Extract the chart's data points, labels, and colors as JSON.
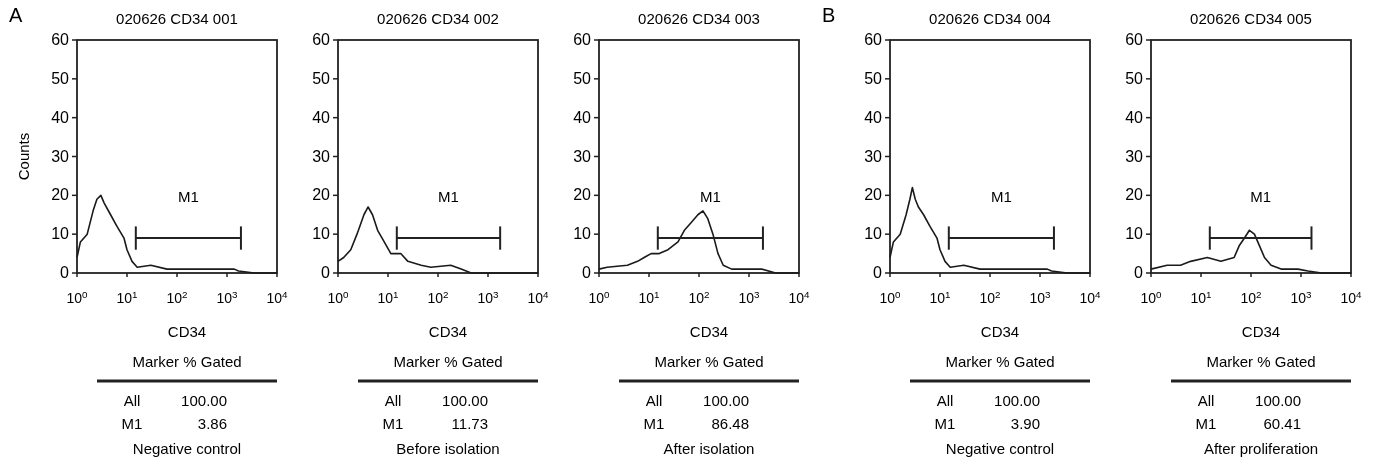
{
  "chart_data": [
    {
      "type": "line",
      "title": "020626 CD34 001",
      "xlabel": "CD34",
      "ylabel": "Counts",
      "log": "x",
      "xlim": [
        1,
        10000
      ],
      "ylim": [
        0,
        60
      ],
      "xticks": [
        {
          "value": 1,
          "label": "10$^{0}$"
        },
        {
          "value": 10,
          "label": "10$^{1}$"
        },
        {
          "value": 100,
          "label": "10$^{2}$"
        },
        {
          "value": 1000,
          "label": "10$^{3}$"
        },
        {
          "value": 10000,
          "label": "10$^{4}$"
        }
      ],
      "yticks": [
        0,
        10,
        20,
        30,
        40,
        50,
        60
      ],
      "series": [
        {
          "color": "#1a1a1a",
          "x": [
            1,
            1.17,
            1.6,
            2.1,
            2.5,
            3,
            3.5,
            4.7,
            6.3,
            8.7,
            10,
            12.6,
            16,
            30,
            63,
            140,
            300,
            650,
            1400,
            1700,
            3500,
            10000
          ],
          "values": [
            4,
            8,
            10,
            16,
            19,
            20,
            18,
            15,
            12,
            9,
            6,
            3,
            1.5,
            2,
            1,
            1,
            1,
            1,
            1,
            0.5,
            0,
            0
          ]
        },
        {
          "name": "M1",
          "color": "#222222",
          "x": [
            15,
            1900
          ],
          "values": [
            9,
            9
          ],
          "errors": [
            3,
            3
          ]
        }
      ],
      "annotations": [
        "A",
        "Marker % Gated",
        "All",
        "100.00",
        "M1",
        "3.86",
        "Negative control"
      ]
    },
    {
      "type": "line",
      "title": "020626 CD34 002",
      "xlabel": "CD34",
      "log": "x",
      "xlim": [
        1,
        10000
      ],
      "ylim": [
        0,
        60
      ],
      "xticks": [
        {
          "value": 1,
          "label": "10$^{0}$"
        },
        {
          "value": 10,
          "label": "10$^{1}$"
        },
        {
          "value": 100,
          "label": "10$^{2}$"
        },
        {
          "value": 1000,
          "label": "10$^{3}$"
        },
        {
          "value": 10000,
          "label": "10$^{4}$"
        }
      ],
      "yticks": [
        0,
        10,
        20,
        30,
        40,
        50,
        60
      ],
      "series": [
        {
          "color": "#1a1a1a",
          "x": [
            1,
            1.3,
            1.8,
            2.4,
            3.3,
            4,
            4.9,
            6.2,
            8.4,
            11.4,
            18,
            25,
            46,
            72,
            180,
            290,
            460,
            10000
          ],
          "values": [
            3,
            4,
            6,
            10,
            15,
            17,
            15,
            11,
            8,
            5,
            5,
            3,
            2,
            1.5,
            2,
            1,
            0,
            0
          ]
        },
        {
          "name": "M1",
          "color": "#222222",
          "x": [
            15,
            1750
          ],
          "values": [
            9,
            9
          ],
          "errors": [
            3,
            3
          ]
        }
      ],
      "annotations": [
        "Marker % Gated",
        "All",
        "100.00",
        "M1",
        "11.73",
        "Before isolation"
      ]
    },
    {
      "type": "line",
      "title": "020626 CD34 003",
      "xlabel": "CD34",
      "log": "x",
      "xlim": [
        1,
        10000
      ],
      "ylim": [
        0,
        60
      ],
      "xticks": [
        {
          "value": 1,
          "label": "10$^{0}$"
        },
        {
          "value": 10,
          "label": "10$^{1}$"
        },
        {
          "value": 100,
          "label": "10$^{2}$"
        },
        {
          "value": 1000,
          "label": "10$^{3}$"
        },
        {
          "value": 10000,
          "label": "10$^{4}$"
        }
      ],
      "yticks": [
        0,
        10,
        20,
        30,
        40,
        50,
        60
      ],
      "series": [
        {
          "color": "#1a1a1a",
          "x": [
            1,
            1.45,
            3.7,
            5.9,
            8,
            11,
            16,
            24,
            38,
            51,
            70,
            95,
            120,
            150,
            190,
            240,
            305,
            450,
            720,
            1800,
            3400,
            10000
          ],
          "values": [
            1,
            1.5,
            2,
            3,
            4,
            5,
            5,
            6,
            8,
            11,
            13,
            15,
            16,
            14,
            10,
            5,
            2,
            1,
            1,
            1,
            0,
            0
          ]
        },
        {
          "name": "M1",
          "color": "#222222",
          "x": [
            15,
            1900
          ],
          "values": [
            9,
            9
          ],
          "errors": [
            3,
            3
          ]
        }
      ],
      "annotations": [
        "Marker % Gated",
        "All",
        "100.00",
        "M1",
        "86.48",
        "After isolation"
      ]
    },
    {
      "type": "line",
      "title": "020626 CD34 004",
      "xlabel": "CD34",
      "log": "x",
      "xlim": [
        1,
        10000
      ],
      "ylim": [
        0,
        60
      ],
      "xticks": [
        {
          "value": 1,
          "label": "10$^{0}$"
        },
        {
          "value": 10,
          "label": "10$^{1}$"
        },
        {
          "value": 100,
          "label": "10$^{2}$"
        },
        {
          "value": 1000,
          "label": "10$^{3}$"
        },
        {
          "value": 10000,
          "label": "10$^{4}$"
        }
      ],
      "yticks": [
        0,
        10,
        20,
        30,
        40,
        50,
        60
      ],
      "series": [
        {
          "color": "#1a1a1a",
          "x": [
            1,
            1.17,
            1.6,
            2.1,
            2.5,
            2.8,
            3.2,
            3.7,
            4.7,
            6.3,
            8.7,
            10,
            12.6,
            16,
            30,
            63,
            140,
            300,
            650,
            1400,
            1700,
            3500,
            10000
          ],
          "values": [
            4,
            8,
            10,
            15,
            19,
            22,
            19,
            17,
            15,
            12,
            9,
            6,
            3,
            1.5,
            2,
            1,
            1,
            1,
            1,
            1,
            0.5,
            0,
            0
          ]
        },
        {
          "name": "M1",
          "color": "#222222",
          "x": [
            15,
            1900
          ],
          "values": [
            9,
            9
          ],
          "errors": [
            3,
            3
          ]
        }
      ],
      "annotations": [
        "B",
        "Marker % Gated",
        "All",
        "100.00",
        "M1",
        "3.90",
        "Negative control"
      ]
    },
    {
      "type": "line",
      "title": "020626 CD34 005",
      "xlabel": "CD34",
      "log": "x",
      "xlim": [
        1,
        10000
      ],
      "ylim": [
        0,
        60
      ],
      "xticks": [
        {
          "value": 1,
          "label": "10$^{0}$"
        },
        {
          "value": 10,
          "label": "10$^{1}$"
        },
        {
          "value": 100,
          "label": "10$^{2}$"
        },
        {
          "value": 1000,
          "label": "10$^{3}$"
        },
        {
          "value": 10000,
          "label": "10$^{4}$"
        }
      ],
      "yticks": [
        0,
        10,
        20,
        30,
        40,
        50,
        60
      ],
      "series": [
        {
          "color": "#1a1a1a",
          "x": [
            1,
            2.1,
            3.9,
            6.2,
            13.4,
            25,
            46,
            58,
            74,
            93,
            117,
            148,
            186,
            252,
            400,
            870,
            1380,
            2570,
            10000
          ],
          "values": [
            1,
            2,
            2,
            3,
            4,
            3,
            4,
            7,
            9,
            11,
            10,
            7,
            4,
            2,
            1,
            1,
            0.5,
            0,
            0
          ]
        },
        {
          "name": "M1",
          "color": "#222222",
          "x": [
            15,
            1620
          ],
          "values": [
            9,
            9
          ],
          "errors": [
            3,
            3
          ]
        }
      ],
      "annotations": [
        "Marker % Gated",
        "All",
        "100.00",
        "M1",
        "60.41",
        "After proliferation"
      ]
    }
  ]
}
